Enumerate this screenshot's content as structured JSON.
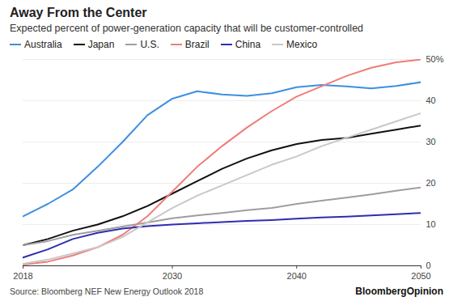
{
  "chart_data": {
    "type": "line",
    "title": "Away From the Center",
    "subtitle": "Expected percent of power-generation capacity that will be customer-controlled",
    "caption": "Source: Bloomberg NEF New Energy Outlook 2018",
    "brand": "BloombergOpinion",
    "x": [
      2018,
      2020,
      2022,
      2024,
      2026,
      2028,
      2030,
      2032,
      2034,
      2036,
      2038,
      2040,
      2042,
      2044,
      2046,
      2048,
      2050
    ],
    "series": [
      {
        "name": "Australia",
        "color": "#3d8fe0",
        "values": [
          12,
          15,
          18.5,
          24,
          30,
          36.5,
          40.5,
          42.3,
          41.5,
          41.2,
          41.8,
          43.3,
          43.8,
          43.5,
          43,
          43.6,
          44.5
        ]
      },
      {
        "name": "Japan",
        "color": "#111111",
        "values": [
          5,
          6.5,
          8.5,
          10,
          12,
          14.5,
          17.5,
          20.5,
          23.5,
          26,
          28,
          29.5,
          30.5,
          31,
          32,
          33,
          34
        ]
      },
      {
        "name": "U.S.",
        "color": "#9e9e9e",
        "values": [
          5,
          6,
          7.5,
          8.5,
          9.5,
          10.5,
          11.5,
          12.2,
          12.8,
          13.5,
          14,
          15,
          15.8,
          16.5,
          17.3,
          18.2,
          19
        ]
      },
      {
        "name": "Brazil",
        "color": "#f07c78",
        "values": [
          0.3,
          1,
          2.5,
          4.5,
          7.5,
          12,
          18,
          24,
          29,
          33.5,
          37.5,
          41,
          43.5,
          46,
          48,
          49.3,
          50
        ]
      },
      {
        "name": "China",
        "color": "#2e2eb0",
        "values": [
          2,
          4,
          6.5,
          8,
          9,
          9.6,
          10,
          10.3,
          10.6,
          10.9,
          11.1,
          11.4,
          11.7,
          11.9,
          12.2,
          12.5,
          12.8
        ]
      },
      {
        "name": "Mexico",
        "color": "#c8c8c8",
        "values": [
          0.5,
          1.5,
          3,
          4.5,
          7,
          10.5,
          14,
          17,
          19.5,
          22,
          24.5,
          26.5,
          29,
          31,
          33,
          35,
          37
        ]
      }
    ],
    "xlim": [
      2018,
      2050
    ],
    "xticks": [
      2018,
      2030,
      2040,
      2050
    ],
    "ylim": [
      0,
      50
    ],
    "yticks": [
      0,
      10,
      20,
      30,
      40,
      {
        "value": 50,
        "label": "50%"
      }
    ],
    "grid": true,
    "legend": "top"
  }
}
